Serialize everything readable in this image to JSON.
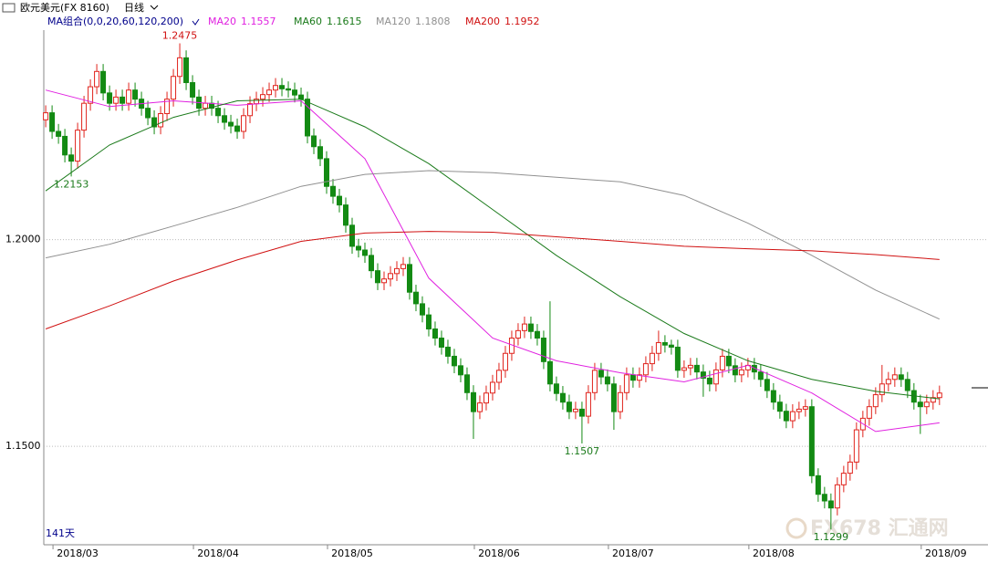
{
  "chart_data": {
    "type": "candlestick",
    "title": "欧元美元(FX 8160)",
    "period": "日线",
    "indicator": "MA组合(0,0,20,60,120,200)",
    "count_label": "141天",
    "watermark": "FX678 汇通网",
    "up_color": "#e0231c",
    "down_color": "#138a13",
    "open": [
      1.229,
      1.2307,
      1.2262,
      1.225,
      1.2205,
      1.219,
      1.2265,
      1.233,
      1.237,
      1.2407,
      1.2355,
      1.233,
      1.2345,
      1.233,
      1.2362,
      1.234,
      1.2318,
      1.2295,
      1.2273,
      1.2305,
      1.234,
      1.2395,
      1.244,
      1.238,
      1.2345,
      1.2318,
      1.233,
      1.2318,
      1.23,
      1.2284,
      1.2275,
      1.2262,
      1.23,
      1.2329,
      1.234,
      1.2351,
      1.2362,
      1.2373,
      1.2365,
      1.2362,
      1.235,
      1.234,
      1.2251,
      1.2225,
      1.2196,
      1.2129,
      1.2105,
      1.2084,
      1.2035,
      1.1984,
      1.1975,
      1.1962,
      1.1925,
      1.1896,
      1.1905,
      1.1918,
      1.193,
      1.194,
      1.1873,
      1.1845,
      1.1818,
      1.1784,
      1.1762,
      1.174,
      1.1718,
      1.1695,
      1.1673,
      1.163,
      1.1584,
      1.1605,
      1.1629,
      1.1655,
      1.1684,
      1.1725,
      1.1762,
      1.178,
      1.1796,
      1.1778,
      1.1762,
      1.1705,
      1.1651,
      1.1628,
      1.1607,
      1.1584,
      1.159,
      1.1573,
      1.163,
      1.1684,
      1.1668,
      1.1651,
      1.1584,
      1.163,
      1.1673,
      1.166,
      1.1673,
      1.17,
      1.1725,
      1.1751,
      1.1745,
      1.174,
      1.1684,
      1.169,
      1.1696,
      1.168,
      1.1665,
      1.1651,
      1.1685,
      1.1718,
      1.1695,
      1.1673,
      1.1685,
      1.1696,
      1.168,
      1.1662,
      1.1635,
      1.1607,
      1.1585,
      1.1562,
      1.1584,
      1.159,
      1.1596,
      1.1429,
      1.1384,
      1.1368,
      1.1351,
      1.1407,
      1.1435,
      1.1462,
      1.154,
      1.1568,
      1.1596,
      1.1625,
      1.1651,
      1.1662,
      1.1673,
      1.1662,
      1.1635,
      1.1607,
      1.1596,
      1.1607,
      1.1618
    ],
    "high": [
      1.2325,
      1.2325,
      1.228,
      1.2268,
      1.2223,
      1.2283,
      1.2348,
      1.2388,
      1.2425,
      1.2425,
      1.2373,
      1.2363,
      1.2363,
      1.238,
      1.238,
      1.2358,
      1.2336,
      1.2313,
      1.2323,
      1.2358,
      1.2413,
      1.2475,
      1.2458,
      1.2398,
      1.2363,
      1.2348,
      1.2348,
      1.2336,
      1.2318,
      1.2302,
      1.2293,
      1.2318,
      1.2347,
      1.2358,
      1.2369,
      1.238,
      1.2391,
      1.2391,
      1.2383,
      1.238,
      1.2368,
      1.2358,
      1.2269,
      1.2243,
      1.2214,
      1.2147,
      1.2123,
      1.2102,
      1.2053,
      1.2002,
      1.1993,
      1.198,
      1.1943,
      1.1923,
      1.1936,
      1.1948,
      1.1958,
      1.1958,
      1.1891,
      1.1863,
      1.1836,
      1.1802,
      1.178,
      1.1758,
      1.1736,
      1.1713,
      1.1691,
      1.1648,
      1.1623,
      1.1647,
      1.1673,
      1.1702,
      1.1743,
      1.178,
      1.1798,
      1.1814,
      1.1814,
      1.1796,
      1.178,
      1.1851,
      1.1669,
      1.1646,
      1.1625,
      1.1608,
      1.1608,
      1.1648,
      1.1702,
      1.1702,
      1.1686,
      1.1669,
      1.1648,
      1.1691,
      1.1691,
      1.1691,
      1.1718,
      1.1743,
      1.178,
      1.1769,
      1.1758,
      1.1758,
      1.1708,
      1.1714,
      1.1714,
      1.1698,
      1.1683,
      1.1703,
      1.1736,
      1.1736,
      1.1713,
      1.1703,
      1.1714,
      1.1714,
      1.1698,
      1.168,
      1.1653,
      1.1625,
      1.1603,
      1.1602,
      1.1608,
      1.1614,
      1.1614,
      1.1447,
      1.1402,
      1.1386,
      1.1425,
      1.1453,
      1.148,
      1.1558,
      1.1586,
      1.1614,
      1.1643,
      1.1697,
      1.168,
      1.1691,
      1.1691,
      1.168,
      1.1653,
      1.1625,
      1.1625,
      1.1636,
      1.1647
    ],
    "low": [
      1.2272,
      1.2244,
      1.2232,
      1.2187,
      1.2153,
      1.2172,
      1.2247,
      1.2312,
      1.2352,
      1.2337,
      1.2312,
      1.2312,
      1.2312,
      1.2312,
      1.2322,
      1.23,
      1.2277,
      1.2255,
      1.2255,
      1.2287,
      1.2322,
      1.2377,
      1.2362,
      1.2327,
      1.23,
      1.23,
      1.23,
      1.2282,
      1.2266,
      1.2257,
      1.2244,
      1.2244,
      1.2282,
      1.2311,
      1.2322,
      1.2333,
      1.2344,
      1.2347,
      1.2344,
      1.2332,
      1.2322,
      1.2233,
      1.2207,
      1.2178,
      1.2111,
      1.2087,
      1.2066,
      1.2017,
      1.1966,
      1.1957,
      1.1944,
      1.1907,
      1.1878,
      1.1878,
      1.1887,
      1.19,
      1.1912,
      1.1855,
      1.1827,
      1.18,
      1.1766,
      1.1744,
      1.1722,
      1.17,
      1.1677,
      1.1655,
      1.1612,
      1.1518,
      1.1566,
      1.1587,
      1.1611,
      1.1637,
      1.1666,
      1.1707,
      1.1744,
      1.1762,
      1.176,
      1.1744,
      1.1687,
      1.1633,
      1.161,
      1.1589,
      1.1566,
      1.1566,
      1.1507,
      1.1555,
      1.1612,
      1.165,
      1.1633,
      1.154,
      1.1566,
      1.1612,
      1.1642,
      1.1642,
      1.1655,
      1.1682,
      1.1707,
      1.1727,
      1.1722,
      1.1666,
      1.1666,
      1.1672,
      1.1662,
      1.162,
      1.1633,
      1.1633,
      1.1667,
      1.1677,
      1.1655,
      1.1655,
      1.1667,
      1.1662,
      1.1644,
      1.1617,
      1.1589,
      1.1567,
      1.1544,
      1.1544,
      1.1566,
      1.1572,
      1.1411,
      1.1366,
      1.135,
      1.1299,
      1.1333,
      1.1389,
      1.1417,
      1.1444,
      1.1522,
      1.155,
      1.1578,
      1.1607,
      1.1633,
      1.1644,
      1.1644,
      1.1617,
      1.1589,
      1.153,
      1.1578,
      1.1589,
      1.16
    ],
    "close": [
      1.2307,
      1.2262,
      1.225,
      1.2205,
      1.219,
      1.2265,
      1.233,
      1.237,
      1.2407,
      1.2355,
      1.233,
      1.2345,
      1.233,
      1.2362,
      1.234,
      1.2318,
      1.2295,
      1.2273,
      1.2305,
      1.234,
      1.2395,
      1.244,
      1.238,
      1.2345,
      1.2318,
      1.233,
      1.2318,
      1.23,
      1.2284,
      1.2275,
      1.2262,
      1.23,
      1.2329,
      1.234,
      1.2351,
      1.2362,
      1.2373,
      1.2365,
      1.2362,
      1.235,
      1.234,
      1.2251,
      1.2225,
      1.2196,
      1.2129,
      1.2105,
      1.2084,
      1.2035,
      1.1984,
      1.1975,
      1.1962,
      1.1925,
      1.1896,
      1.1905,
      1.1918,
      1.193,
      1.194,
      1.1873,
      1.1845,
      1.1818,
      1.1784,
      1.1762,
      1.174,
      1.1718,
      1.1695,
      1.1673,
      1.163,
      1.1584,
      1.1605,
      1.1629,
      1.1655,
      1.1684,
      1.1725,
      1.1762,
      1.178,
      1.1796,
      1.1778,
      1.1762,
      1.1705,
      1.1651,
      1.1628,
      1.1607,
      1.1584,
      1.159,
      1.1573,
      1.163,
      1.1684,
      1.1668,
      1.1651,
      1.1584,
      1.163,
      1.1673,
      1.166,
      1.1673,
      1.17,
      1.1725,
      1.1751,
      1.1745,
      1.174,
      1.1684,
      1.169,
      1.1696,
      1.168,
      1.1665,
      1.1651,
      1.1685,
      1.1718,
      1.1695,
      1.1673,
      1.1685,
      1.1696,
      1.168,
      1.1662,
      1.1635,
      1.1607,
      1.1585,
      1.1562,
      1.1584,
      1.159,
      1.1596,
      1.1429,
      1.1384,
      1.1368,
      1.1351,
      1.1407,
      1.1435,
      1.1462,
      1.154,
      1.1568,
      1.1596,
      1.1625,
      1.1651,
      1.1662,
      1.1673,
      1.1662,
      1.1635,
      1.1607,
      1.1596,
      1.1607,
      1.1618,
      1.1629
    ],
    "series": [
      {
        "name": "MA20",
        "color": "#e020e0",
        "last": 1.1557,
        "x": [
          0,
          10,
          20,
          30,
          40,
          50,
          60,
          70,
          80,
          90,
          100,
          110,
          120,
          130,
          140
        ],
        "values": [
          1.2362,
          1.2322,
          1.2336,
          1.2325,
          1.2336,
          1.2196,
          1.1907,
          1.1762,
          1.1707,
          1.1678,
          1.1656,
          1.1696,
          1.1629,
          1.1536,
          1.1557
        ]
      },
      {
        "name": "MA60",
        "color": "#1a7a1a",
        "last": 1.1615,
        "x": [
          0,
          10,
          20,
          30,
          40,
          50,
          60,
          70,
          80,
          90,
          100,
          110,
          120,
          130,
          140
        ],
        "values": [
          1.2118,
          1.2229,
          1.2296,
          1.2336,
          1.234,
          1.2273,
          1.2184,
          1.2073,
          1.1962,
          1.1862,
          1.1773,
          1.1707,
          1.1662,
          1.1633,
          1.1615
        ]
      },
      {
        "name": "MA120",
        "color": "#909090",
        "last": 1.1808,
        "x": [
          0,
          10,
          20,
          30,
          40,
          50,
          60,
          70,
          80,
          90,
          100,
          110,
          120,
          130,
          140
        ],
        "values": [
          1.1956,
          1.1989,
          1.2033,
          1.2078,
          1.2129,
          1.2158,
          1.2167,
          1.2162,
          1.2151,
          1.214,
          1.2107,
          1.204,
          1.1962,
          1.1878,
          1.1808
        ]
      },
      {
        "name": "MA200",
        "color": "#d01010",
        "last": 1.1952,
        "x": [
          0,
          10,
          20,
          30,
          40,
          50,
          60,
          70,
          80,
          90,
          100,
          110,
          120,
          130,
          140
        ],
        "values": [
          1.1784,
          1.184,
          1.19,
          1.1951,
          1.1996,
          1.2016,
          1.202,
          1.2018,
          1.2007,
          1.1996,
          1.1984,
          1.1978,
          1.1973,
          1.1964,
          1.1952
        ]
      }
    ],
    "ylim": [
      1.1262,
      1.2507
    ],
    "yticks": [
      {
        "value": 1.2,
        "label": "1.2000"
      },
      {
        "value": 1.15,
        "label": "1.1500"
      }
    ],
    "grid": true,
    "xlim": [
      -0.3,
      147.6
    ],
    "xticks": [
      {
        "value": 5,
        "label": "2018/03"
      },
      {
        "value": 27,
        "label": "2018/04"
      },
      {
        "value": 48,
        "label": "2018/05"
      },
      {
        "value": 71,
        "label": "2018/06"
      },
      {
        "value": 92,
        "label": "2018/07"
      },
      {
        "value": 114,
        "label": "2018/08"
      },
      {
        "value": 141,
        "label": "2018/09"
      }
    ],
    "annotations": [
      {
        "value": 1.2475,
        "index": 21,
        "side": "above",
        "color": "#d01010"
      },
      {
        "value": 1.2153,
        "index": 4,
        "side": "below",
        "color": "#1a7a1a"
      },
      {
        "value": 1.1507,
        "index": 84,
        "side": "below",
        "color": "#1a7a1a"
      },
      {
        "value": 1.1299,
        "index": 123,
        "side": "below",
        "color": "#1a7a1a"
      }
    ]
  }
}
